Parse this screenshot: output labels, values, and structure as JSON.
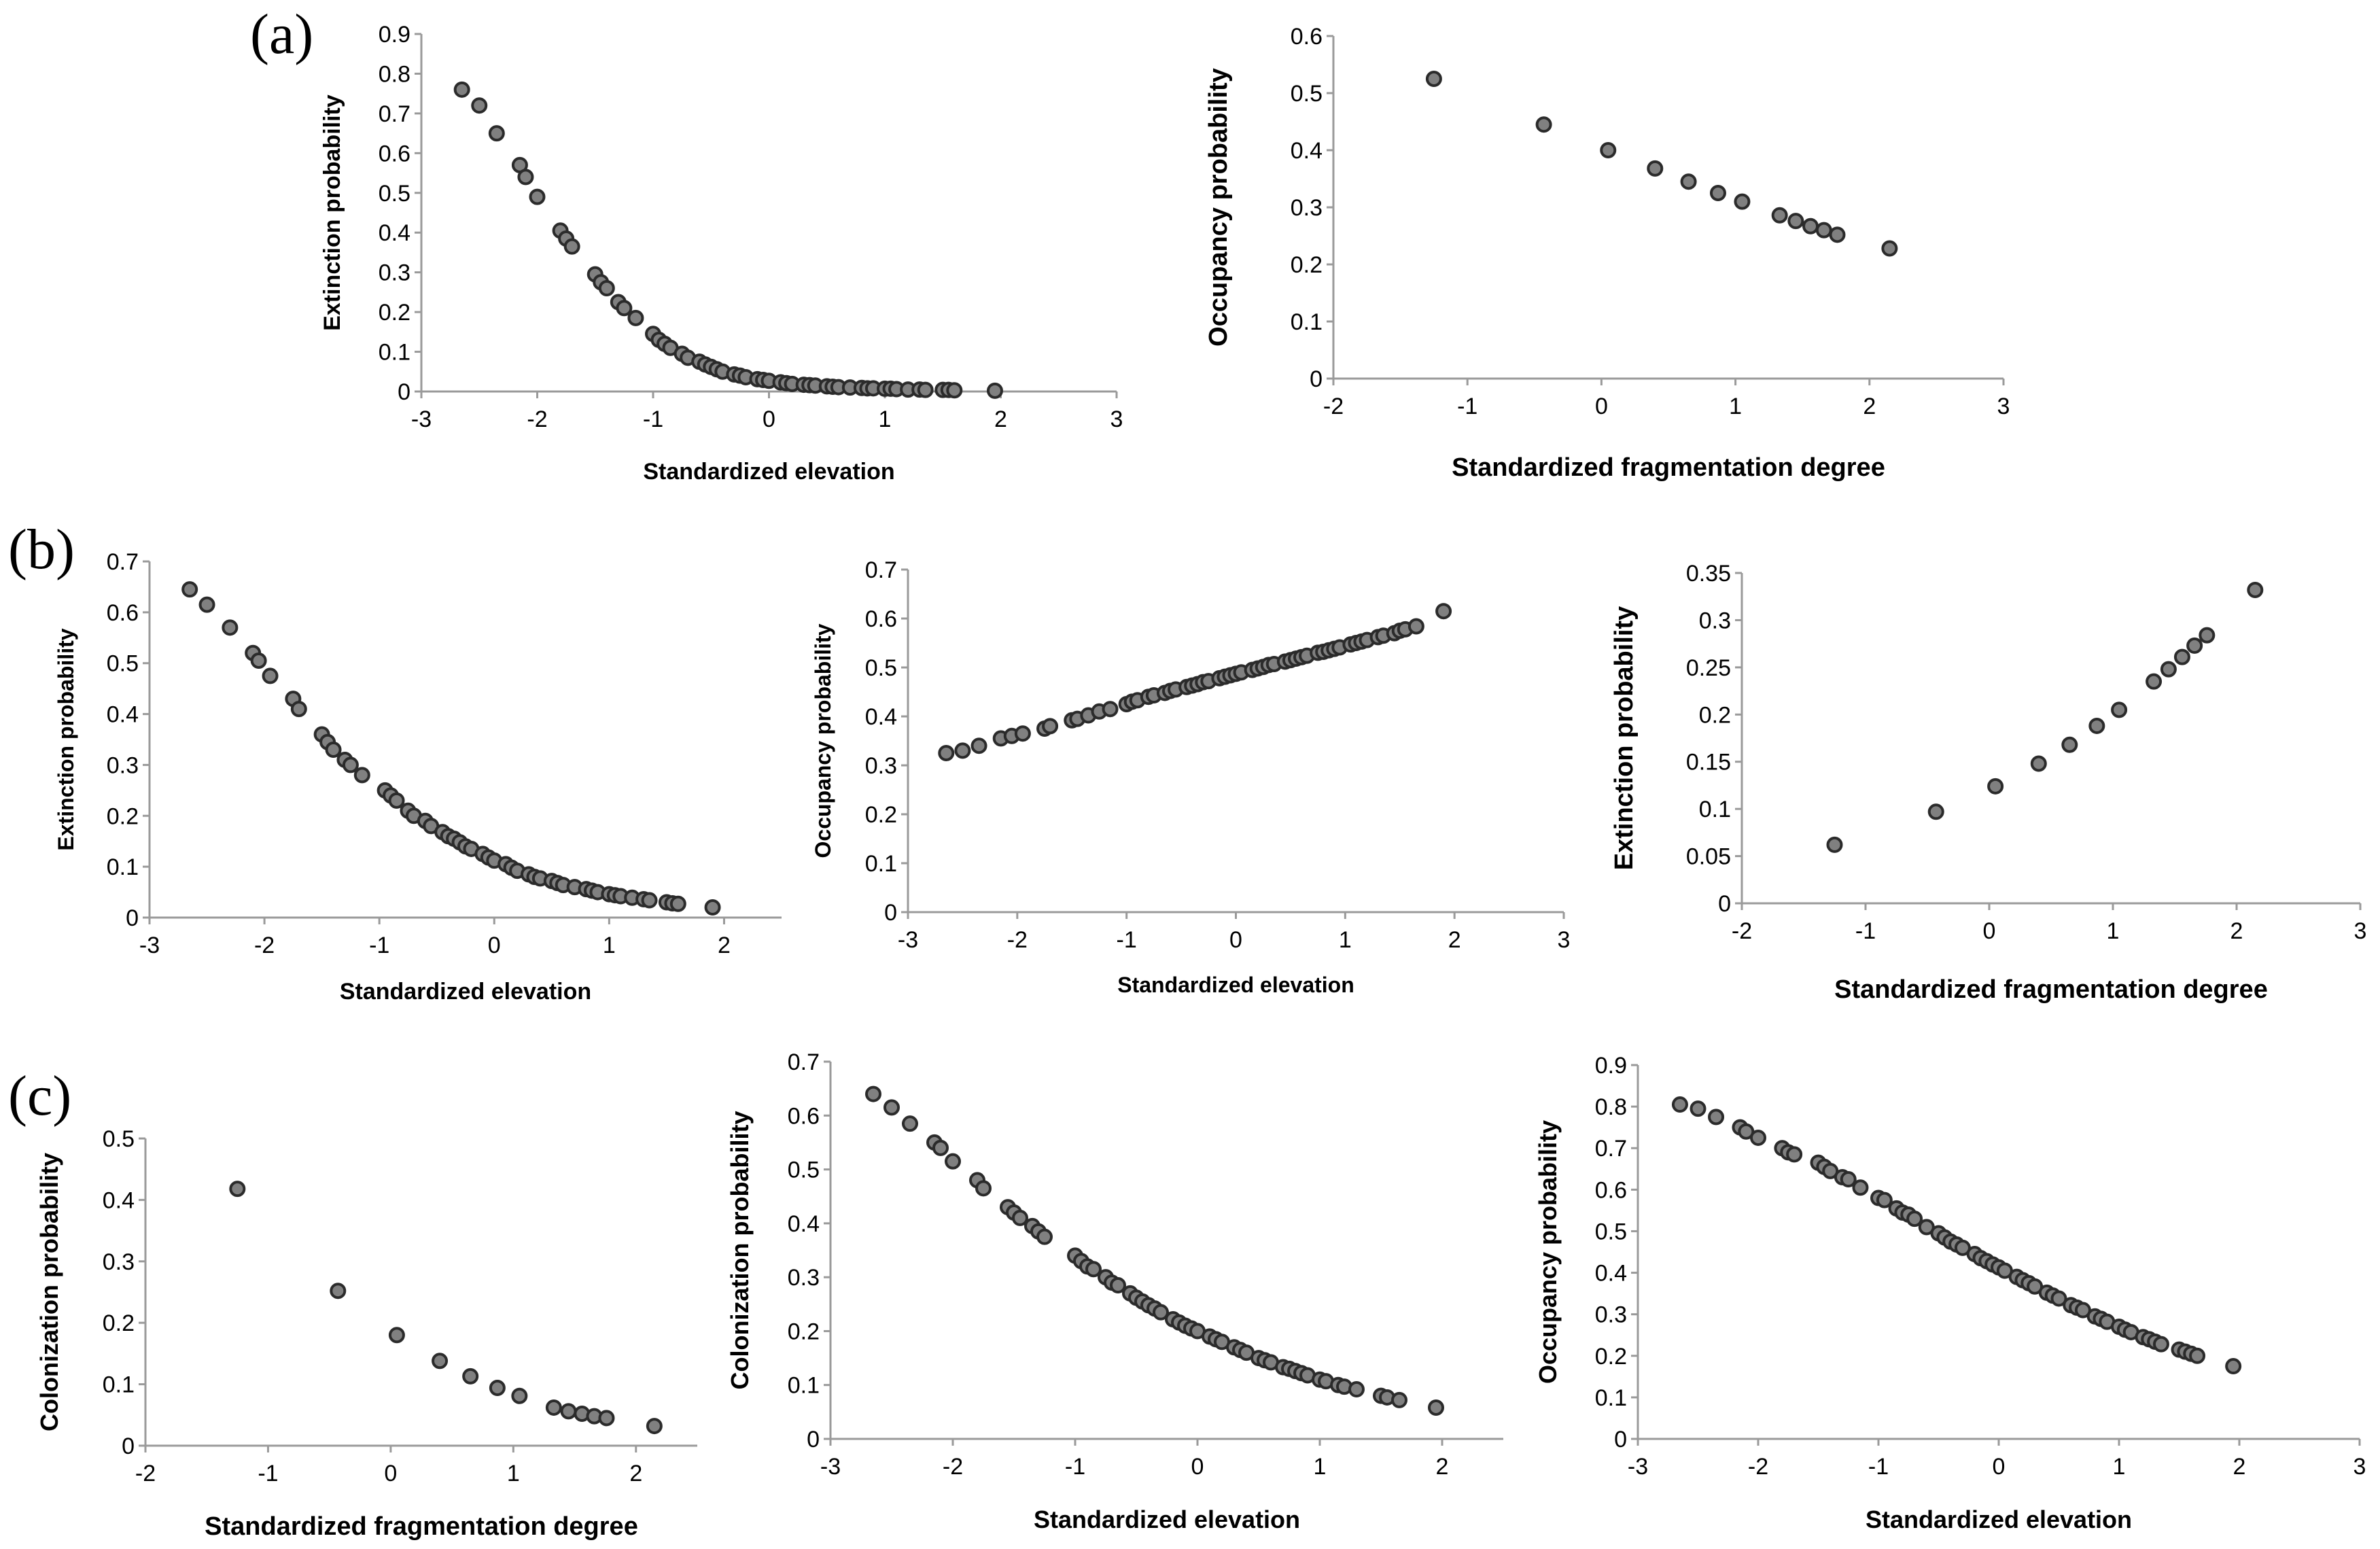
{
  "panel_labels": [
    "(a)",
    "(b)",
    "(c)"
  ],
  "chart_data": [
    {
      "type": "scatter",
      "panel": "(a)",
      "xlabel": "Standardized elevation",
      "ylabel": "Extinction probability",
      "xlim": [
        -3,
        3
      ],
      "ylim": [
        0,
        0.9
      ],
      "xstep": 1,
      "ystep": 0.1,
      "ydecimals": 1,
      "x_ticks": [
        "-3",
        "-2",
        "-1",
        "0",
        "1",
        "2",
        "3"
      ],
      "y_ticks": [
        "0",
        "0.1",
        "0.2",
        "0.3",
        "0.4",
        "0.5",
        "0.6",
        "0.7",
        "0.8",
        "0.9"
      ],
      "x": [
        -2.65,
        -2.5,
        -2.35,
        -2.15,
        -2.1,
        -2.0,
        -1.8,
        -1.75,
        -1.7,
        -1.5,
        -1.45,
        -1.4,
        -1.3,
        -1.25,
        -1.15,
        -1.0,
        -0.95,
        -0.9,
        -0.85,
        -0.75,
        -0.7,
        -0.6,
        -0.55,
        -0.5,
        -0.45,
        -0.4,
        -0.3,
        -0.25,
        -0.2,
        -0.1,
        -0.05,
        0.0,
        0.1,
        0.15,
        0.2,
        0.3,
        0.35,
        0.4,
        0.5,
        0.55,
        0.6,
        0.7,
        0.8,
        0.85,
        0.9,
        1.0,
        1.05,
        1.1,
        1.2,
        1.3,
        1.35,
        1.5,
        1.55,
        1.6,
        1.95
      ],
      "y": [
        0.76,
        0.72,
        0.65,
        0.57,
        0.54,
        0.49,
        0.405,
        0.385,
        0.365,
        0.295,
        0.275,
        0.26,
        0.225,
        0.21,
        0.185,
        0.145,
        0.13,
        0.12,
        0.11,
        0.095,
        0.085,
        0.075,
        0.068,
        0.062,
        0.056,
        0.05,
        0.043,
        0.04,
        0.036,
        0.031,
        0.029,
        0.027,
        0.023,
        0.021,
        0.019,
        0.017,
        0.016,
        0.015,
        0.013,
        0.012,
        0.011,
        0.01,
        0.009,
        0.008,
        0.008,
        0.007,
        0.007,
        0.006,
        0.005,
        0.005,
        0.004,
        0.004,
        0.004,
        0.003,
        0.002
      ]
    },
    {
      "type": "scatter",
      "panel": "(a)",
      "xlabel": "Standardized fragmentation degree",
      "ylabel": "Occupancy probability",
      "xlim": [
        -2,
        3
      ],
      "ylim": [
        0,
        0.6
      ],
      "xstep": 1,
      "ystep": 0.1,
      "ydecimals": 1,
      "x_ticks": [
        "-2",
        "-1",
        "0",
        "1",
        "2",
        "3"
      ],
      "y_ticks": [
        "0",
        "0.1",
        "0.2",
        "0.3",
        "0.4",
        "0.5",
        "0.6"
      ],
      "x": [
        -1.25,
        -0.43,
        0.05,
        0.4,
        0.65,
        0.87,
        1.05,
        1.33,
        1.45,
        1.56,
        1.66,
        1.76,
        2.15
      ],
      "y": [
        0.525,
        0.445,
        0.4,
        0.368,
        0.345,
        0.325,
        0.31,
        0.286,
        0.276,
        0.267,
        0.26,
        0.252,
        0.228
      ]
    },
    {
      "type": "scatter",
      "panel": "(b)",
      "xlabel": "Standardized elevation",
      "ylabel": "Extinction probability",
      "xlim": [
        -3,
        2.5
      ],
      "ylim": [
        0,
        0.7
      ],
      "xstep": 1,
      "ystep": 0.1,
      "ydecimals": 1,
      "x_ticks": [
        "-3",
        "-2",
        "-1",
        "0",
        "1",
        "2"
      ],
      "y_ticks": [
        "0",
        "0.1",
        "0.2",
        "0.3",
        "0.4",
        "0.5",
        "0.6",
        "0.7"
      ],
      "x": [
        -2.65,
        -2.5,
        -2.3,
        -2.1,
        -2.05,
        -1.95,
        -1.75,
        -1.7,
        -1.5,
        -1.45,
        -1.4,
        -1.3,
        -1.25,
        -1.15,
        -0.95,
        -0.9,
        -0.85,
        -0.75,
        -0.7,
        -0.6,
        -0.55,
        -0.45,
        -0.4,
        -0.35,
        -0.3,
        -0.25,
        -0.2,
        -0.1,
        -0.05,
        0.0,
        0.1,
        0.15,
        0.2,
        0.3,
        0.35,
        0.4,
        0.5,
        0.55,
        0.6,
        0.7,
        0.8,
        0.85,
        0.9,
        1.0,
        1.05,
        1.1,
        1.2,
        1.3,
        1.35,
        1.5,
        1.55,
        1.6,
        1.9
      ],
      "y": [
        0.645,
        0.615,
        0.57,
        0.52,
        0.505,
        0.475,
        0.43,
        0.41,
        0.36,
        0.345,
        0.33,
        0.31,
        0.3,
        0.28,
        0.25,
        0.24,
        0.23,
        0.21,
        0.2,
        0.19,
        0.18,
        0.168,
        0.16,
        0.155,
        0.148,
        0.14,
        0.135,
        0.125,
        0.118,
        0.112,
        0.105,
        0.098,
        0.092,
        0.085,
        0.08,
        0.077,
        0.072,
        0.068,
        0.064,
        0.06,
        0.056,
        0.053,
        0.05,
        0.046,
        0.044,
        0.042,
        0.039,
        0.036,
        0.034,
        0.03,
        0.028,
        0.027,
        0.02
      ]
    },
    {
      "type": "scatter",
      "panel": "(b)",
      "xlabel": "Standardized elevation",
      "ylabel": "Occupancy probability",
      "xlim": [
        -3,
        3
      ],
      "ylim": [
        0,
        0.7
      ],
      "xstep": 1,
      "ystep": 0.1,
      "ydecimals": 1,
      "x_ticks": [
        "-3",
        "-2",
        "-1",
        "0",
        "1",
        "2",
        "3"
      ],
      "y_ticks": [
        "0",
        "0.1",
        "0.2",
        "0.3",
        "0.4",
        "0.5",
        "0.6",
        "0.7"
      ],
      "x": [
        -2.65,
        -2.5,
        -2.35,
        -2.15,
        -2.05,
        -1.95,
        -1.75,
        -1.7,
        -1.5,
        -1.45,
        -1.35,
        -1.25,
        -1.15,
        -1.0,
        -0.95,
        -0.9,
        -0.8,
        -0.75,
        -0.65,
        -0.6,
        -0.55,
        -0.45,
        -0.4,
        -0.35,
        -0.3,
        -0.25,
        -0.15,
        -0.1,
        -0.05,
        0.0,
        0.05,
        0.15,
        0.2,
        0.25,
        0.3,
        0.35,
        0.45,
        0.5,
        0.55,
        0.6,
        0.65,
        0.75,
        0.8,
        0.85,
        0.9,
        0.95,
        1.05,
        1.1,
        1.15,
        1.2,
        1.3,
        1.35,
        1.45,
        1.5,
        1.55,
        1.65,
        1.9
      ],
      "y": [
        0.325,
        0.33,
        0.34,
        0.355,
        0.36,
        0.365,
        0.375,
        0.38,
        0.392,
        0.395,
        0.402,
        0.41,
        0.415,
        0.425,
        0.43,
        0.433,
        0.44,
        0.443,
        0.448,
        0.452,
        0.455,
        0.46,
        0.463,
        0.466,
        0.47,
        0.472,
        0.478,
        0.481,
        0.484,
        0.487,
        0.49,
        0.495,
        0.498,
        0.501,
        0.505,
        0.507,
        0.512,
        0.515,
        0.518,
        0.521,
        0.524,
        0.53,
        0.532,
        0.535,
        0.538,
        0.541,
        0.547,
        0.55,
        0.553,
        0.556,
        0.562,
        0.565,
        0.57,
        0.575,
        0.578,
        0.584,
        0.615
      ]
    },
    {
      "type": "scatter",
      "panel": "(b)",
      "xlabel": "Standardized fragmentation degree",
      "ylabel": "Extinction probability",
      "xlim": [
        -2,
        3
      ],
      "ylim": [
        0,
        0.35
      ],
      "xstep": 1,
      "ystep": 0.05,
      "ydecimals": 2,
      "x_ticks": [
        "-2",
        "-1",
        "0",
        "1",
        "2",
        "3"
      ],
      "y_ticks": [
        "0",
        "0.05",
        "0.1",
        "0.15",
        "0.2",
        "0.25",
        "0.3",
        "0.35"
      ],
      "x": [
        -1.25,
        -0.43,
        0.05,
        0.4,
        0.65,
        0.87,
        1.05,
        1.33,
        1.45,
        1.56,
        1.66,
        1.76,
        2.15
      ],
      "y": [
        0.062,
        0.097,
        0.124,
        0.148,
        0.168,
        0.188,
        0.205,
        0.235,
        0.248,
        0.261,
        0.273,
        0.284,
        0.332
      ]
    },
    {
      "type": "scatter",
      "panel": "(c)",
      "xlabel": "Standardized fragmentation degree",
      "ylabel": "Colonization probability",
      "xlim": [
        -2,
        2.5
      ],
      "ylim": [
        0,
        0.5
      ],
      "xstep": 1,
      "ystep": 0.1,
      "ydecimals": 1,
      "x_ticks": [
        "-2",
        "-1",
        "0",
        "1",
        "2"
      ],
      "y_ticks": [
        "0",
        "0.1",
        "0.2",
        "0.3",
        "0.4",
        "0.5"
      ],
      "x": [
        -1.25,
        -0.43,
        0.05,
        0.4,
        0.65,
        0.87,
        1.05,
        1.33,
        1.45,
        1.56,
        1.66,
        1.76,
        2.15
      ],
      "y": [
        0.418,
        0.252,
        0.18,
        0.138,
        0.113,
        0.094,
        0.081,
        0.062,
        0.056,
        0.052,
        0.048,
        0.045,
        0.032
      ]
    },
    {
      "type": "scatter",
      "panel": "(c)",
      "xlabel": "Standardized elevation",
      "ylabel": "Colonization probability",
      "xlim": [
        -3,
        2.5
      ],
      "ylim": [
        0,
        0.7
      ],
      "xstep": 1,
      "ystep": 0.1,
      "ydecimals": 1,
      "x_ticks": [
        "-3",
        "-2",
        "-1",
        "0",
        "1",
        "2"
      ],
      "y_ticks": [
        "0",
        "0.1",
        "0.2",
        "0.3",
        "0.4",
        "0.5",
        "0.6",
        "0.7"
      ],
      "x": [
        -2.65,
        -2.5,
        -2.35,
        -2.15,
        -2.1,
        -2.0,
        -1.8,
        -1.75,
        -1.55,
        -1.5,
        -1.45,
        -1.35,
        -1.3,
        -1.25,
        -1.0,
        -0.95,
        -0.9,
        -0.85,
        -0.75,
        -0.7,
        -0.65,
        -0.55,
        -0.5,
        -0.45,
        -0.4,
        -0.35,
        -0.3,
        -0.2,
        -0.15,
        -0.1,
        -0.05,
        0.0,
        0.1,
        0.15,
        0.2,
        0.3,
        0.35,
        0.4,
        0.5,
        0.55,
        0.6,
        0.7,
        0.75,
        0.8,
        0.85,
        0.9,
        1.0,
        1.05,
        1.15,
        1.2,
        1.3,
        1.5,
        1.55,
        1.65,
        1.95
      ],
      "y": [
        0.64,
        0.615,
        0.585,
        0.55,
        0.54,
        0.515,
        0.48,
        0.465,
        0.43,
        0.42,
        0.41,
        0.395,
        0.385,
        0.375,
        0.34,
        0.33,
        0.32,
        0.315,
        0.3,
        0.29,
        0.285,
        0.27,
        0.262,
        0.255,
        0.248,
        0.242,
        0.235,
        0.222,
        0.216,
        0.21,
        0.205,
        0.2,
        0.19,
        0.185,
        0.18,
        0.17,
        0.165,
        0.16,
        0.15,
        0.146,
        0.142,
        0.133,
        0.13,
        0.126,
        0.122,
        0.118,
        0.11,
        0.107,
        0.1,
        0.097,
        0.092,
        0.08,
        0.077,
        0.072,
        0.058
      ]
    },
    {
      "type": "scatter",
      "panel": "(c)",
      "xlabel": "Standardized elevation",
      "ylabel": "Occupancy probability",
      "xlim": [
        -3,
        3
      ],
      "ylim": [
        0,
        0.9
      ],
      "xstep": 1,
      "ystep": 0.1,
      "ydecimals": 1,
      "x_ticks": [
        "-3",
        "-2",
        "-1",
        "0",
        "1",
        "2",
        "3"
      ],
      "y_ticks": [
        "0",
        "0.1",
        "0.2",
        "0.3",
        "0.4",
        "0.5",
        "0.6",
        "0.7",
        "0.8",
        "0.9"
      ],
      "x": [
        -2.65,
        -2.5,
        -2.35,
        -2.15,
        -2.1,
        -2.0,
        -1.8,
        -1.75,
        -1.7,
        -1.5,
        -1.45,
        -1.4,
        -1.3,
        -1.25,
        -1.15,
        -1.0,
        -0.95,
        -0.85,
        -0.8,
        -0.75,
        -0.7,
        -0.6,
        -0.5,
        -0.45,
        -0.4,
        -0.35,
        -0.3,
        -0.2,
        -0.15,
        -0.1,
        -0.05,
        0.0,
        0.05,
        0.15,
        0.2,
        0.25,
        0.3,
        0.4,
        0.45,
        0.5,
        0.6,
        0.65,
        0.7,
        0.8,
        0.85,
        0.9,
        1.0,
        1.05,
        1.1,
        1.2,
        1.25,
        1.3,
        1.35,
        1.5,
        1.55,
        1.6,
        1.65,
        1.95
      ],
      "y": [
        0.805,
        0.795,
        0.775,
        0.75,
        0.74,
        0.725,
        0.7,
        0.69,
        0.685,
        0.665,
        0.655,
        0.645,
        0.63,
        0.625,
        0.605,
        0.58,
        0.575,
        0.555,
        0.545,
        0.54,
        0.53,
        0.51,
        0.495,
        0.485,
        0.475,
        0.468,
        0.46,
        0.445,
        0.435,
        0.428,
        0.42,
        0.413,
        0.405,
        0.39,
        0.382,
        0.375,
        0.367,
        0.352,
        0.345,
        0.338,
        0.322,
        0.316,
        0.31,
        0.295,
        0.289,
        0.282,
        0.27,
        0.263,
        0.257,
        0.245,
        0.24,
        0.234,
        0.228,
        0.215,
        0.21,
        0.205,
        0.2,
        0.175
      ]
    }
  ]
}
